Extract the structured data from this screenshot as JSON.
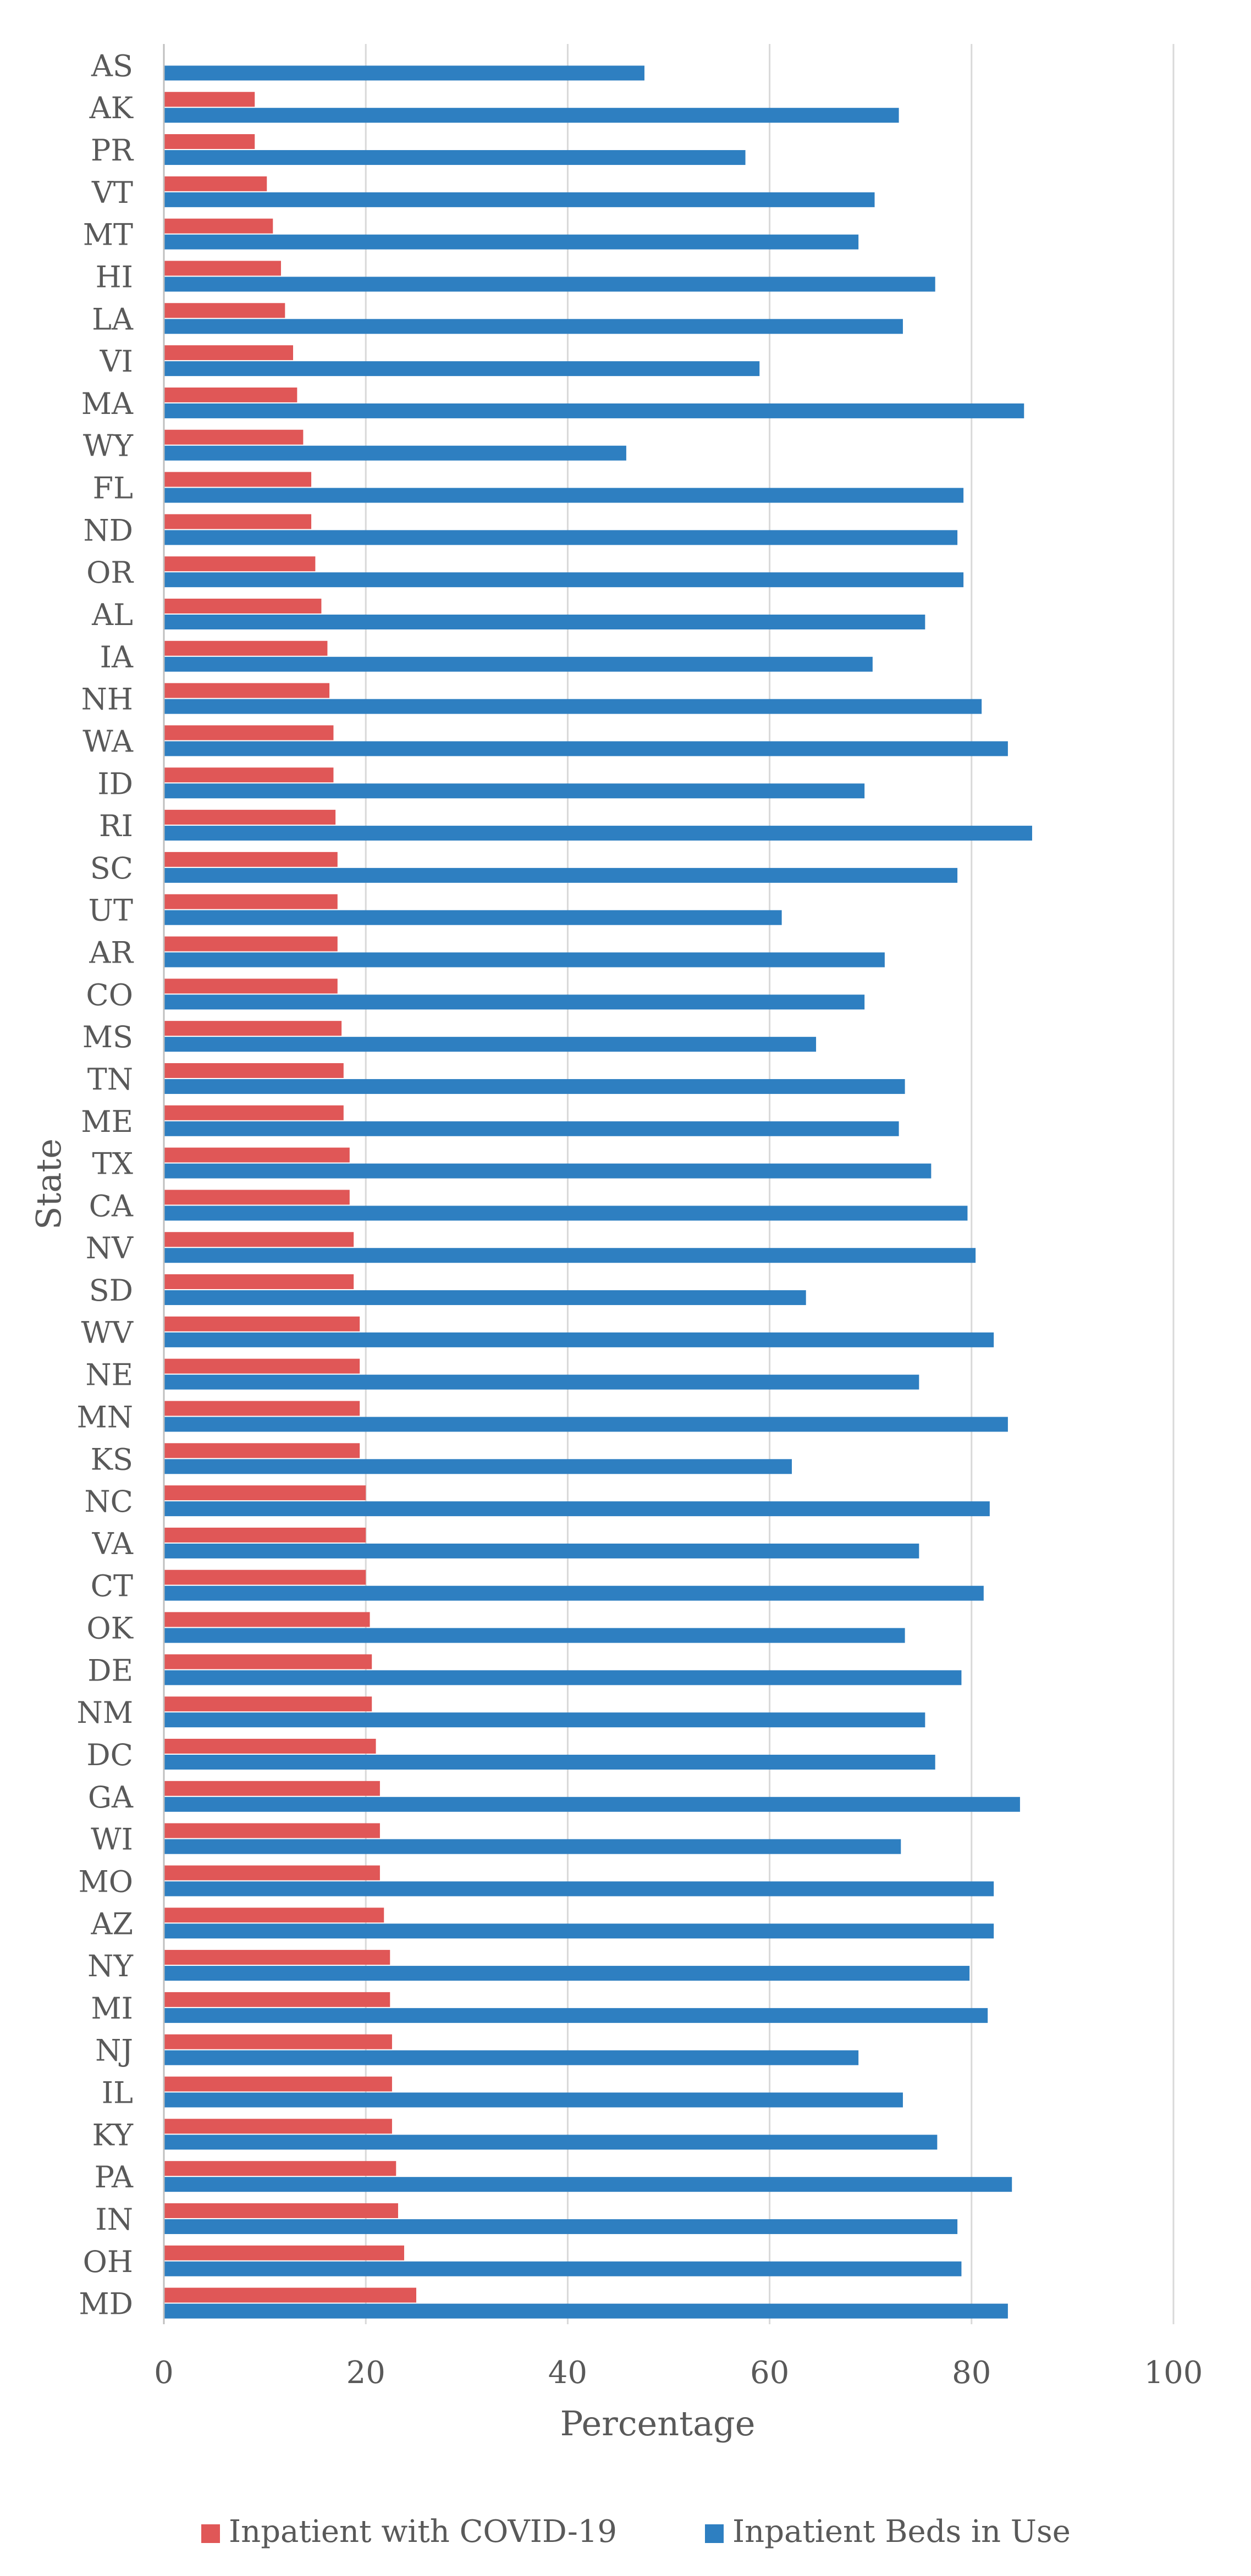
{
  "chart_data": {
    "type": "bar",
    "orientation": "horizontal",
    "xlabel": "Percentage",
    "ylabel": "State",
    "xlim": [
      0,
      100
    ],
    "x_ticks": [
      0,
      20,
      40,
      60,
      80,
      100
    ],
    "grid": "vertical",
    "legend_position": "bottom",
    "categories": [
      "AS",
      "AK",
      "PR",
      "VT",
      "MT",
      "HI",
      "LA",
      "VI",
      "MA",
      "WY",
      "FL",
      "ND",
      "OR",
      "AL",
      "IA",
      "NH",
      "WA",
      "ID",
      "RI",
      "SC",
      "UT",
      "AR",
      "CO",
      "MS",
      "TN",
      "ME",
      "TX",
      "CA",
      "NV",
      "SD",
      "WV",
      "NE",
      "MN",
      "KS",
      "NC",
      "VA",
      "CT",
      "OK",
      "DE",
      "NM",
      "DC",
      "GA",
      "WI",
      "MO",
      "AZ",
      "NY",
      "MI",
      "NJ",
      "IL",
      "KY",
      "PA",
      "IN",
      "OH",
      "MD"
    ],
    "series": [
      {
        "name": "Inpatient with COVID-19",
        "color": "#E05757",
        "values": [
          0,
          9.0,
          9.0,
          10.2,
          10.8,
          11.6,
          12.0,
          12.8,
          13.2,
          13.8,
          14.6,
          14.6,
          15.0,
          15.6,
          16.2,
          16.4,
          16.8,
          16.8,
          17.0,
          17.2,
          17.2,
          17.2,
          17.2,
          17.6,
          17.8,
          17.8,
          18.4,
          18.4,
          18.8,
          18.8,
          19.4,
          19.4,
          19.4,
          19.4,
          20.0,
          20.0,
          20.0,
          20.4,
          20.6,
          20.6,
          21.0,
          21.4,
          21.4,
          21.4,
          21.8,
          22.4,
          22.4,
          22.6,
          22.6,
          22.6,
          23.0,
          23.2,
          23.8,
          25.0
        ]
      },
      {
        "name": "Inpatient Beds in Use",
        "color": "#2E7FC1",
        "values": [
          47.6,
          72.8,
          57.6,
          70.4,
          68.8,
          76.4,
          73.2,
          59.0,
          85.2,
          45.8,
          79.2,
          78.6,
          79.2,
          75.4,
          70.2,
          81.0,
          83.6,
          69.4,
          86.0,
          78.6,
          61.2,
          71.4,
          69.4,
          64.6,
          73.4,
          72.8,
          76.0,
          79.6,
          80.4,
          63.6,
          82.2,
          74.8,
          83.6,
          62.2,
          81.8,
          74.8,
          81.2,
          73.4,
          79.0,
          75.4,
          76.4,
          84.8,
          73.0,
          82.2,
          82.2,
          79.8,
          81.6,
          68.8,
          73.2,
          76.6,
          84.0,
          78.6,
          79.0,
          83.6
        ]
      }
    ]
  }
}
